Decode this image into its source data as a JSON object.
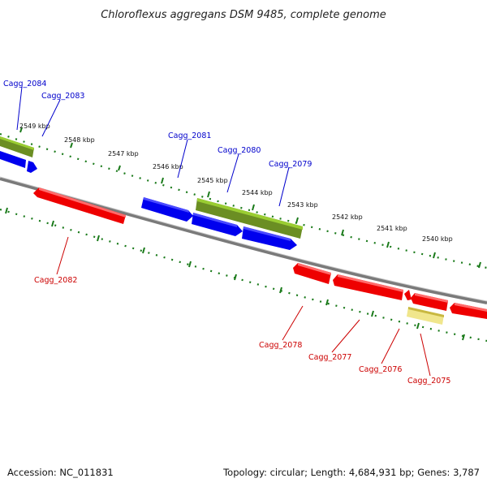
{
  "title": "Chloroflexus aggregans DSM 9485, complete genome",
  "footer": {
    "accession": "Accession: NC_011831",
    "summary": "Topology: circular; Length: 4,684,931 bp; Genes: 3,787"
  },
  "scale": {
    "unit": "kbp",
    "ticks": [
      "2549 kbp",
      "2548 kbp",
      "2547 kbp",
      "2546 kbp",
      "2545 kbp",
      "2544 kbp",
      "2543 kbp",
      "2542 kbp",
      "2541 kbp",
      "2540 kbp"
    ]
  },
  "colors": {
    "forward_cds": "#0000ee",
    "reverse_cds": "#ee0000",
    "rna": "#6b8e23",
    "other": "#f0e68c",
    "backbone": "#808080",
    "scale_dots": "#1a7a1a"
  },
  "genes": [
    {
      "name": "Cagg_2084",
      "strand": "forward",
      "type": "rna"
    },
    {
      "name": "Cagg_2083",
      "strand": "forward",
      "type": "cds"
    },
    {
      "name": "Cagg_2082",
      "strand": "reverse",
      "type": "cds"
    },
    {
      "name": "Cagg_2081",
      "strand": "forward",
      "type": "cds"
    },
    {
      "name": "Cagg_2080",
      "strand": "forward",
      "type": "rna"
    },
    {
      "name": "Cagg_2079",
      "strand": "forward",
      "type": "cds"
    },
    {
      "name": "Cagg_2078",
      "strand": "reverse",
      "type": "cds"
    },
    {
      "name": "Cagg_2077",
      "strand": "reverse",
      "type": "cds"
    },
    {
      "name": "Cagg_2076",
      "strand": "reverse",
      "type": "cds"
    },
    {
      "name": "Cagg_2075",
      "strand": "reverse",
      "type": "other"
    }
  ]
}
